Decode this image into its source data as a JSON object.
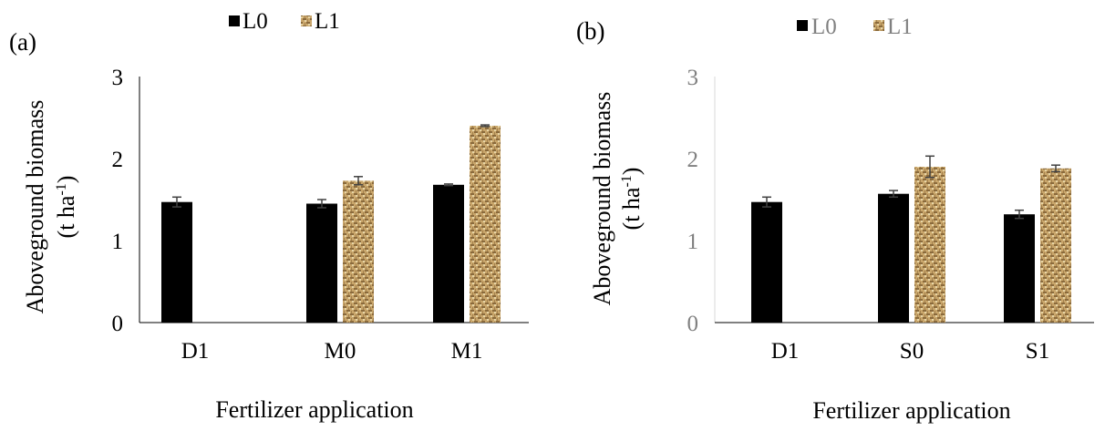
{
  "legend_labels": [
    "L0",
    "L1"
  ],
  "colors": {
    "L0": "#000000",
    "L1": "#c8a46a",
    "L1_dark": "#8a6a3c",
    "axis": "#000000",
    "errorbar": "#404040"
  },
  "chart_data": [
    {
      "type": "bar",
      "panel_label": "(a)",
      "categories": [
        "D1",
        "M0",
        "M1"
      ],
      "series": [
        {
          "name": "L0",
          "values": [
            1.47,
            1.45,
            1.68
          ],
          "errors": [
            0.06,
            0.05,
            0.01
          ]
        },
        {
          "name": "L1",
          "values": [
            null,
            1.73,
            2.4
          ],
          "errors": [
            null,
            0.05,
            0.01
          ]
        }
      ],
      "yticks": [
        "0",
        "1",
        "2",
        "3"
      ],
      "ylim": [
        0,
        3
      ],
      "ylabel_line1": "Aboveground biomass",
      "ylabel_line2_prefix": "(t ha",
      "ylabel_line2_sup": "-1",
      "ylabel_line2_suffix": ")",
      "xlabel": "Fertilizer application",
      "legend_position": "top",
      "grid": false
    },
    {
      "type": "bar",
      "panel_label": "(b)",
      "categories": [
        "D1",
        "S0",
        "S1"
      ],
      "series": [
        {
          "name": "L0",
          "values": [
            1.47,
            1.57,
            1.32
          ],
          "errors": [
            0.06,
            0.04,
            0.05
          ]
        },
        {
          "name": "L1",
          "values": [
            null,
            1.9,
            1.88
          ],
          "errors": [
            null,
            0.13,
            0.04
          ]
        }
      ],
      "yticks": [
        "0",
        "1",
        "2",
        "3"
      ],
      "ylim": [
        0,
        3
      ],
      "ylabel_line1": "Aboveground biomass",
      "ylabel_line2_prefix": "(t ha",
      "ylabel_line2_sup": "-1",
      "ylabel_line2_suffix": ")",
      "xlabel": "Fertilizer application",
      "legend_position": "top",
      "grid": false
    }
  ]
}
